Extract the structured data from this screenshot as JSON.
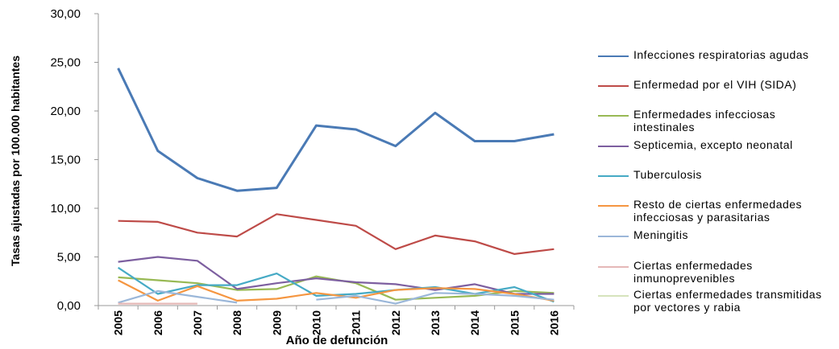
{
  "chart_data": {
    "type": "line",
    "x_label": "Año de defunción",
    "y_label": "Tasas ajustadas por 100.000 habitantes",
    "categories": [
      "2005",
      "2006",
      "2007",
      "2008",
      "2009",
      "2010",
      "2011",
      "2012",
      "2013",
      "2014",
      "2015",
      "2016"
    ],
    "ylim": [
      0,
      30
    ],
    "yticks": [
      {
        "value": 0,
        "label": "0,00"
      },
      {
        "value": 5,
        "label": "5,00"
      },
      {
        "value": 10,
        "label": "10,00"
      },
      {
        "value": 15,
        "label": "15,00"
      },
      {
        "value": 20,
        "label": "20,00"
      },
      {
        "value": 25,
        "label": "25,00"
      },
      {
        "value": 30,
        "label": "30,00"
      }
    ],
    "grid": false,
    "legend": "right",
    "series": [
      {
        "name": "Infecciones respiratorias agudas",
        "color": "#4a7ab5",
        "values": [
          24.4,
          15.9,
          13.1,
          11.8,
          12.1,
          18.5,
          18.1,
          16.4,
          19.8,
          16.9,
          16.9,
          17.6
        ]
      },
      {
        "name": "Enfermedad por el VIH (SIDA)",
        "color": "#be4b48",
        "values": [
          8.7,
          8.6,
          7.5,
          7.1,
          9.4,
          8.8,
          8.2,
          5.8,
          7.2,
          6.6,
          5.3,
          5.8
        ]
      },
      {
        "name": "Enfermedades infecciosas intestinales",
        "color": "#98b954",
        "values": [
          2.9,
          2.6,
          2.3,
          1.6,
          1.7,
          3.0,
          2.3,
          0.6,
          0.8,
          1.0,
          1.5,
          1.3
        ]
      },
      {
        "name": "Septicemia, excepto neonatal",
        "color": "#7d5fa0",
        "values": [
          4.5,
          5.0,
          4.6,
          1.7,
          2.3,
          2.8,
          2.4,
          2.2,
          1.6,
          2.2,
          1.2,
          1.2
        ]
      },
      {
        "name": "Tuberculosis",
        "color": "#46aac5",
        "values": [
          3.9,
          1.2,
          2.1,
          2.1,
          3.3,
          1.0,
          1.2,
          1.6,
          1.9,
          1.2,
          1.9,
          0.4
        ]
      },
      {
        "name": "Resto de ciertas enfermedades infecciosas y parasitarias",
        "color": "#f59641",
        "values": [
          2.6,
          0.5,
          2.0,
          0.5,
          0.7,
          1.3,
          0.8,
          1.6,
          1.8,
          1.7,
          1.2,
          0.5
        ]
      },
      {
        "name": "Meningitis",
        "color": "#9bb7d9",
        "values": [
          0.3,
          1.5,
          0.9,
          0.3,
          null,
          0.6,
          1.0,
          0.2,
          1.3,
          1.2,
          1.0,
          0.6
        ]
      },
      {
        "name": "Ciertas enfermedades inmunoprevenibles",
        "color": "#e5b8b7",
        "values": [
          0.2,
          0.2,
          0.2,
          null,
          null,
          null,
          null,
          null,
          null,
          null,
          null,
          null
        ]
      },
      {
        "name": "Ciertas enfermedades transmitidas por vectores y rabia",
        "color": "#d6e3bc",
        "values": [
          null,
          null,
          null,
          null,
          null,
          null,
          null,
          null,
          null,
          null,
          null,
          null
        ]
      }
    ]
  }
}
